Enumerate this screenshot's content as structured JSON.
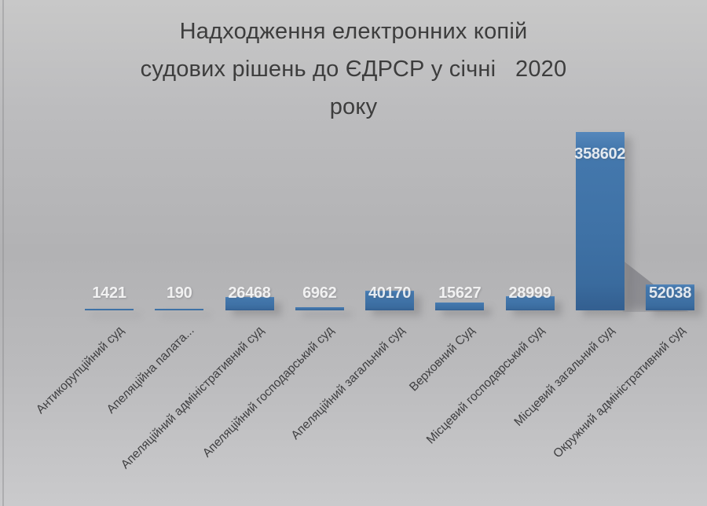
{
  "title": {
    "lines": [
      "Надходження електронних копій",
      "судових рішень до ЄДРСР у січні   2020",
      "року"
    ]
  },
  "chart_data": {
    "type": "bar",
    "title": "Надходження електронних копій судових рішень до ЄДРСР у січні 2020 року",
    "categories": [
      "Антикорупційний суд",
      "Апеляційна палата...",
      "Апеляційний адміністративний суд",
      "Апеляційний господарський суд",
      "Апеляційний загальний суд",
      "Верховний Суд",
      "Місцевий господарський суд",
      "Місцевий загальний суд",
      "Окружний адміністративний суд"
    ],
    "values": [
      1421,
      190,
      26468,
      6962,
      40170,
      15627,
      28999,
      358602,
      52038
    ],
    "data_labels": [
      "1421",
      "190",
      "26468",
      "6962",
      "40170",
      "15627",
      "28999",
      "358602",
      "52038"
    ],
    "xlabel": "",
    "ylabel": "",
    "ylim": [
      0,
      358602
    ],
    "grid": false,
    "legend": false,
    "category_label_rotation_deg": 45
  },
  "colors": {
    "bar_fill": "#3f72a6",
    "bar_fill_top": "#5587bb",
    "bar_fill_bottom": "#335f90",
    "value_label": "#dfe1e6",
    "category_label": "#3f3f41",
    "title_text": "#3d3d3d",
    "background_mid": "#b2b2b4",
    "background_edge": "#c9c9cb"
  }
}
